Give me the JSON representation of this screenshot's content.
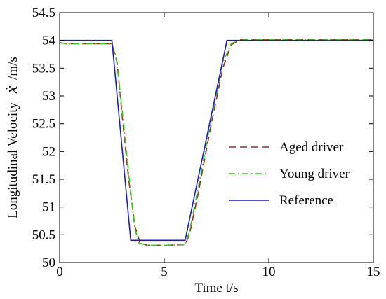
{
  "chart_data": {
    "type": "line",
    "title": "",
    "xlabel": "Time t/s",
    "ylabel_prefix": "Longitudinal Velocity",
    "ylabel_symbol": "ẋ",
    "ylabel_unit": "/m/s",
    "xlim": [
      0,
      15
    ],
    "ylim": [
      50,
      54.5
    ],
    "x_ticks": [
      0,
      5,
      10,
      15
    ],
    "x_tick_labels": [
      "0",
      "5",
      "10",
      "15"
    ],
    "y_ticks": [
      50,
      50.5,
      51,
      51.5,
      52,
      52.5,
      53,
      53.5,
      54,
      54.5
    ],
    "y_tick_labels": [
      "50",
      "50.5",
      "51",
      "51.5",
      "52",
      "52.5",
      "53",
      "53.5",
      "54",
      "54.5"
    ],
    "grid": false,
    "legend_position": "right",
    "series": [
      {
        "name": "Aged driver",
        "color": "#a0281e",
        "style": "dashed",
        "x": [
          0,
          0.3,
          2.5,
          2.75,
          3.0,
          3.3,
          3.6,
          3.85,
          4.2,
          5.0,
          6.0,
          6.2,
          6.6,
          7.2,
          7.8,
          8.2,
          8.6,
          9.0,
          15
        ],
        "y": [
          53.96,
          53.94,
          53.94,
          53.6,
          52.6,
          51.5,
          50.65,
          50.35,
          50.31,
          50.31,
          50.32,
          50.5,
          51.2,
          52.4,
          53.5,
          53.92,
          54.01,
          54.02,
          54.02
        ]
      },
      {
        "name": "Young driver",
        "color": "#33cc11",
        "style": "dashdot",
        "x": [
          0,
          0.3,
          2.5,
          2.7,
          3.0,
          3.3,
          3.6,
          3.8,
          4.2,
          5.0,
          6.0,
          6.2,
          6.6,
          7.2,
          7.8,
          8.2,
          8.6,
          9.0,
          15
        ],
        "y": [
          53.96,
          53.94,
          53.94,
          53.7,
          52.7,
          51.6,
          50.6,
          50.35,
          50.31,
          50.31,
          50.32,
          50.55,
          51.3,
          52.5,
          53.6,
          53.94,
          54.01,
          54.01,
          54.01
        ]
      },
      {
        "name": "Reference",
        "color": "#1a1acc",
        "style": "solid",
        "x": [
          0,
          2.5,
          3.4,
          6.0,
          8.0,
          15
        ],
        "y": [
          54,
          54,
          50.4,
          50.4,
          54,
          54
        ]
      }
    ]
  }
}
